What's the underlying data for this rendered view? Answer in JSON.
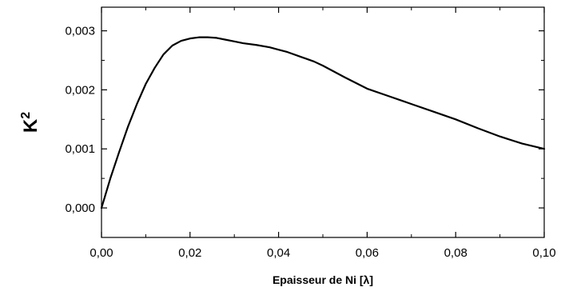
{
  "chart_data": {
    "type": "line",
    "title": "",
    "xlabel": "Epaisseur de Ni [λ]",
    "ylabel": "K",
    "ylabel_superscript": "2",
    "xlim": [
      0.0,
      0.1
    ],
    "ylim": [
      -0.0005,
      0.0034
    ],
    "grid": false,
    "legend": "none",
    "x_ticks": [
      0.0,
      0.02,
      0.04,
      0.06,
      0.08,
      0.1
    ],
    "x_tick_labels": [
      "0,00",
      "0,02",
      "0,04",
      "0,06",
      "0,08",
      "0,10"
    ],
    "y_ticks": [
      0.0,
      0.001,
      0.002,
      0.003
    ],
    "y_tick_labels": [
      "0,000",
      "0,001",
      "0,002",
      "0,003"
    ],
    "line_color": "#000000",
    "series": [
      {
        "x": [
          0.0,
          0.002,
          0.004,
          0.006,
          0.008,
          0.01,
          0.012,
          0.014,
          0.016,
          0.018,
          0.02,
          0.022,
          0.024,
          0.026,
          0.028,
          0.03,
          0.032,
          0.035,
          0.038,
          0.04,
          0.042,
          0.045,
          0.048,
          0.05,
          0.055,
          0.06,
          0.065,
          0.07,
          0.075,
          0.08,
          0.085,
          0.09,
          0.095,
          0.1
        ],
        "y": [
          0.0,
          0.0005,
          0.00095,
          0.00138,
          0.00176,
          0.0021,
          0.00237,
          0.0026,
          0.00275,
          0.00283,
          0.00287,
          0.00289,
          0.00289,
          0.00288,
          0.00285,
          0.00282,
          0.00279,
          0.00276,
          0.00272,
          0.00268,
          0.00264,
          0.00256,
          0.00248,
          0.00241,
          0.00221,
          0.00202,
          0.00189,
          0.00176,
          0.00163,
          0.0015,
          0.00135,
          0.00121,
          0.00109,
          0.001
        ]
      }
    ]
  }
}
